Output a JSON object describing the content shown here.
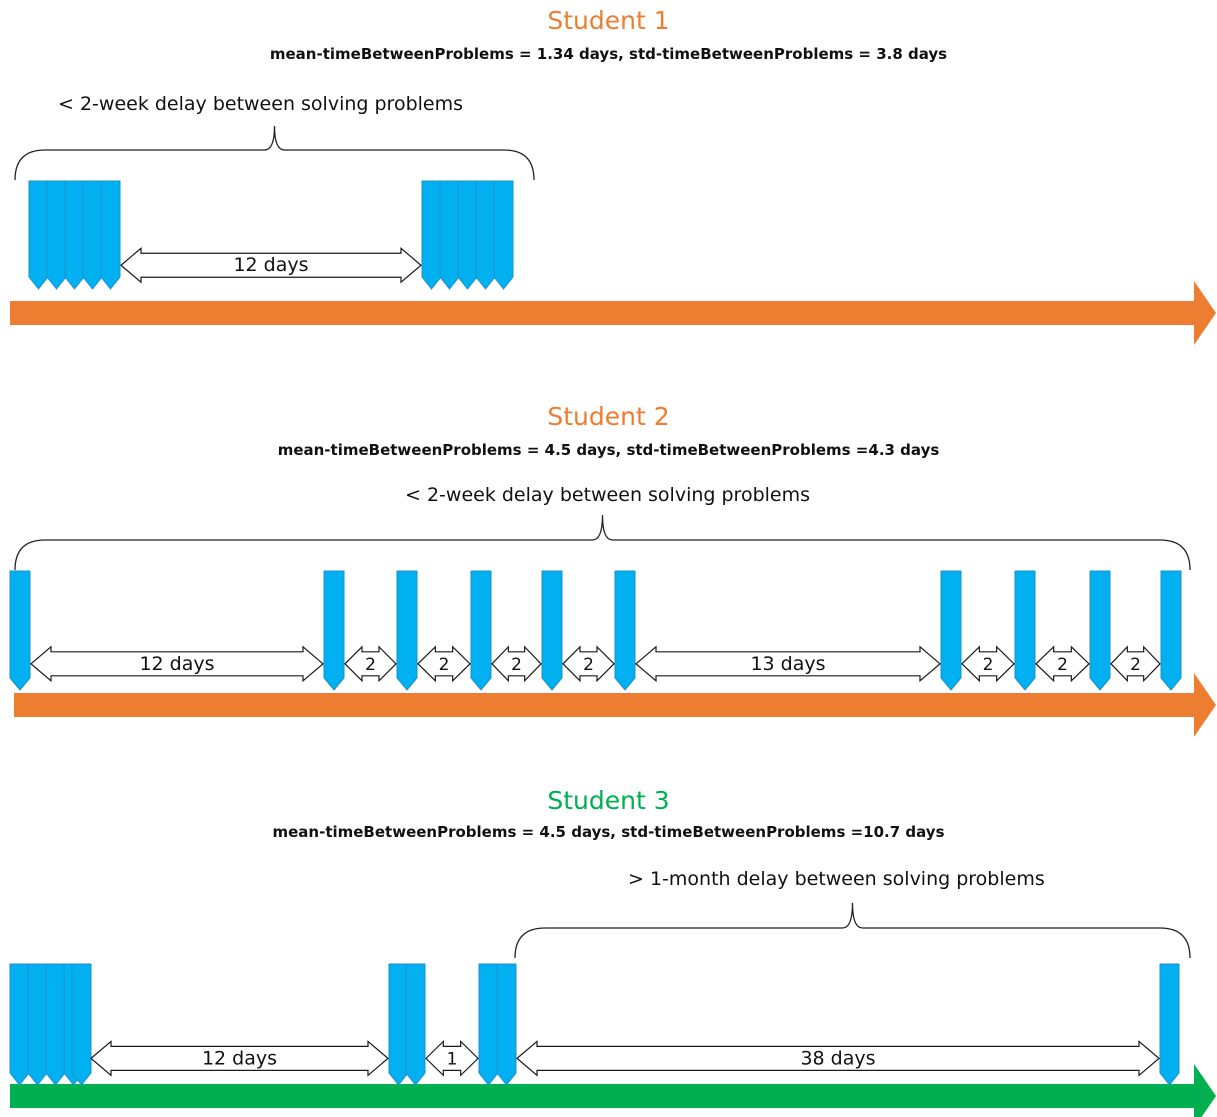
{
  "colors": {
    "student1": "#ED7D31",
    "student2": "#ED7D31",
    "student3": "#00B050",
    "problem": "#00B0F0",
    "problem_border": "#1F8FC7",
    "gap_arrow_fill": "#ffffff",
    "gap_arrow_stroke": "#1a1a1a"
  },
  "students": [
    {
      "title": "Student 1",
      "stats": "mean-timeBetweenProblems = 1.34 days, std-timeBetweenProblems = 3.8 days",
      "brace_label": "< 2-week delay between solving problems",
      "gaps": [
        {
          "label": "12 days"
        }
      ]
    },
    {
      "title": "Student 2",
      "stats": "mean-timeBetweenProblems = 4.5 days, std-timeBetweenProblems =4.3 days",
      "brace_label": "< 2-week delay between solving problems",
      "gaps": [
        {
          "label": "12 days"
        },
        {
          "label": "2"
        },
        {
          "label": "2"
        },
        {
          "label": "2"
        },
        {
          "label": "2"
        },
        {
          "label": "13 days"
        },
        {
          "label": "2"
        },
        {
          "label": "2"
        },
        {
          "label": "2"
        }
      ]
    },
    {
      "title": "Student 3",
      "stats": "mean-timeBetweenProblems = 4.5 days, std-timeBetweenProblems =10.7 days",
      "brace_label": "> 1-month delay between solving problems",
      "gaps": [
        {
          "label": "12 days"
        },
        {
          "label": "1"
        },
        {
          "label": "38 days"
        }
      ]
    }
  ]
}
